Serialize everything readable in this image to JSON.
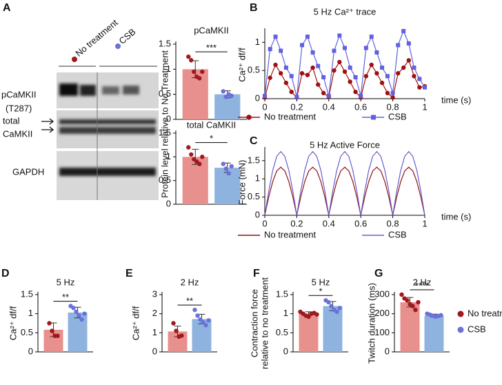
{
  "panel_labels": [
    "A",
    "B",
    "C",
    "D",
    "E",
    "F",
    "G"
  ],
  "blot": {
    "lanes": [
      "No treatment",
      "CSB"
    ],
    "lane_colors": [
      "#a0191c",
      "#6a72d8"
    ],
    "rows": [
      "pCaMKII",
      "(T287)",
      "total",
      "CaMKII",
      "GAPDH"
    ]
  },
  "chart_data": [
    {
      "type": "bar",
      "title": "pCaMKII",
      "ylabel": "Protein level relative to No Treatment",
      "values": [
        1.0,
        0.5
      ],
      "errors": [
        0.17,
        0.07
      ],
      "points": [
        [
          1.25,
          1.18,
          0.95,
          0.85,
          0.82,
          0.95
        ],
        [
          0.56,
          0.45,
          0.5,
          0.47
        ]
      ],
      "colors": [
        "#e8908e",
        "#8fb3df"
      ],
      "point_colors": [
        "#a0191c",
        "#6a72d8"
      ],
      "ylim": [
        0,
        1.5
      ],
      "yticks": [
        0,
        0.5,
        1,
        1.5
      ],
      "significance": "***"
    },
    {
      "type": "bar",
      "title": "total CaMKII",
      "values": [
        1.0,
        0.77
      ],
      "errors": [
        0.16,
        0.1
      ],
      "points": [
        [
          1.2,
          1.05,
          0.95,
          0.9,
          0.85,
          1.0
        ],
        [
          0.85,
          0.75,
          0.65,
          0.8
        ]
      ],
      "colors": [
        "#e8908e",
        "#8fb3df"
      ],
      "point_colors": [
        "#a0191c",
        "#6a72d8"
      ],
      "ylim": [
        0,
        1.5
      ],
      "yticks": [
        0,
        0.5,
        1,
        1.5
      ],
      "significance": "*"
    },
    {
      "type": "line",
      "title": "5 Hz Ca²⁺ trace",
      "ylabel": "Ca²⁺ df/f",
      "xlabel": "time (s)",
      "x": [
        0,
        0.033,
        0.067,
        0.1,
        0.133,
        0.167,
        0.2,
        0.233,
        0.267,
        0.3,
        0.333,
        0.367,
        0.4,
        0.433,
        0.467,
        0.5,
        0.533,
        0.567,
        0.6,
        0.633,
        0.667,
        0.7,
        0.733,
        0.767,
        0.8,
        0.833,
        0.867,
        0.9,
        0.933,
        0.967,
        1
      ],
      "series": [
        {
          "name": "No treatment",
          "color": "#a01010",
          "marker": "circle",
          "values": [
            0.02,
            0.37,
            0.6,
            0.45,
            0.28,
            0.12,
            0.02,
            0.45,
            0.42,
            0.55,
            0.25,
            0.1,
            0.03,
            0.5,
            0.65,
            0.48,
            0.3,
            0.12,
            0.02,
            0.4,
            0.6,
            0.45,
            0.28,
            0.1,
            0.02,
            0.45,
            0.55,
            0.68,
            0.4,
            0.2,
            0.22
          ]
        },
        {
          "name": "CSB",
          "color": "#6060e0",
          "marker": "square",
          "values": [
            0.05,
            0.88,
            1.1,
            0.85,
            0.55,
            0.4,
            0.03,
            0.95,
            1.1,
            0.82,
            0.58,
            0.38,
            0.05,
            0.85,
            1.12,
            0.9,
            0.55,
            0.38,
            0.05,
            0.9,
            1.1,
            0.82,
            0.55,
            0.4,
            0.1,
            0.95,
            1.2,
            0.98,
            0.55,
            0.35,
            0.2
          ]
        }
      ],
      "xlim": [
        0,
        1
      ],
      "xticks": [
        0,
        0.2,
        0.4,
        0.6,
        0.8,
        1
      ],
      "ylim": [
        0,
        1.2
      ],
      "yticks": [
        0,
        0.5,
        1
      ]
    },
    {
      "type": "line",
      "title": "5 Hz Active Force",
      "ylabel": "Force (mN)",
      "xlabel": "time (s)",
      "x": [
        0,
        0.025,
        0.05,
        0.075,
        0.1,
        0.125,
        0.15,
        0.175,
        0.2,
        0.225,
        0.25,
        0.275,
        0.3,
        0.325,
        0.35,
        0.375,
        0.4,
        0.425,
        0.45,
        0.475,
        0.5,
        0.525,
        0.55,
        0.575,
        0.6,
        0.625,
        0.65,
        0.675,
        0.7,
        0.725,
        0.75,
        0.775,
        0.8,
        0.825,
        0.85,
        0.875,
        0.9,
        0.925,
        0.95,
        0.975,
        1
      ],
      "series": [
        {
          "name": "No treatment",
          "color": "#8b1010",
          "values": [
            0,
            0.51,
            0.93,
            1.22,
            1.32,
            1.22,
            0.93,
            0.51,
            0,
            0.51,
            0.93,
            1.22,
            1.32,
            1.22,
            0.93,
            0.51,
            0,
            0.51,
            0.93,
            1.22,
            1.32,
            1.22,
            0.93,
            0.51,
            0,
            0.51,
            0.93,
            1.22,
            1.32,
            1.22,
            0.93,
            0.51,
            0,
            0.51,
            0.93,
            1.22,
            1.32,
            1.22,
            0.93,
            0.51,
            0
          ]
        },
        {
          "name": "CSB",
          "color": "#6a5acd",
          "values": [
            0,
            0.67,
            1.24,
            1.62,
            1.75,
            1.62,
            1.24,
            0.67,
            0,
            0.67,
            1.24,
            1.62,
            1.75,
            1.62,
            1.24,
            0.67,
            0,
            0.67,
            1.24,
            1.62,
            1.75,
            1.62,
            1.24,
            0.67,
            0,
            0.67,
            1.24,
            1.62,
            1.75,
            1.62,
            1.24,
            0.67,
            0,
            0.67,
            1.24,
            1.62,
            1.75,
            1.62,
            1.24,
            0.67,
            0
          ]
        }
      ],
      "xlim": [
        0,
        1
      ],
      "xticks": [
        0,
        0.2,
        0.4,
        0.6,
        0.8,
        1
      ],
      "ylim": [
        0,
        1.8
      ],
      "yticks": [
        0,
        0.5,
        1,
        1.5
      ]
    },
    {
      "type": "bar",
      "title": "5 Hz",
      "ylabel": "Ca²⁺ df/f",
      "values": [
        0.58,
        1.03
      ],
      "errors": [
        0.18,
        0.14
      ],
      "points": [
        [
          0.75,
          0.55,
          0.42,
          0.42
        ],
        [
          1.2,
          1.15,
          1.05,
          0.95,
          0.85,
          1.0
        ]
      ],
      "colors": [
        "#e8908e",
        "#8fb3df"
      ],
      "point_colors": [
        "#a0191c",
        "#6a72d8"
      ],
      "ylim": [
        0,
        1.5
      ],
      "yticks": [
        0,
        0.5,
        1,
        1.5
      ],
      "significance": "**"
    },
    {
      "type": "bar",
      "title": "2 Hz",
      "ylabel": "Ca²⁺ df/f",
      "values": [
        1.07,
        1.72
      ],
      "errors": [
        0.28,
        0.25
      ],
      "points": [
        [
          1.5,
          1.1,
          0.8,
          0.85
        ],
        [
          2.2,
          1.9,
          1.7,
          1.55,
          1.4,
          1.65
        ]
      ],
      "colors": [
        "#e8908e",
        "#8fb3df"
      ],
      "point_colors": [
        "#a0191c",
        "#6a72d8"
      ],
      "ylim": [
        0,
        3
      ],
      "yticks": [
        0,
        1,
        2,
        3
      ],
      "significance": "**"
    },
    {
      "type": "bar",
      "title": "5 Hz",
      "ylabel": [
        "Contraction force",
        "relative to no treatment"
      ],
      "values": [
        1.0,
        1.2
      ],
      "errors": [
        0.05,
        0.12
      ],
      "points": [
        [
          1.05,
          1.0,
          0.95,
          0.92,
          1.0,
          1.02,
          0.98
        ],
        [
          1.35,
          1.3,
          1.2,
          1.1,
          1.05,
          1.15
        ]
      ],
      "colors": [
        "#e8908e",
        "#8fb3df"
      ],
      "point_colors": [
        "#a0191c",
        "#6a72d8"
      ],
      "ylim": [
        0,
        1.5
      ],
      "yticks": [
        0,
        0.5,
        1,
        1.5
      ],
      "significance": "*"
    },
    {
      "type": "bar",
      "title": "2 Hz",
      "ylabel": "Twitch duration (ms)",
      "values": [
        260,
        190
      ],
      "errors": [
        25,
        8
      ],
      "points": [
        [
          300,
          280,
          270,
          250,
          240,
          220,
          260
        ],
        [
          200,
          195,
          190,
          185,
          188,
          192
        ]
      ],
      "colors": [
        "#e8908e",
        "#8fb3df"
      ],
      "point_colors": [
        "#a0191c",
        "#6a72d8"
      ],
      "ylim": [
        0,
        300
      ],
      "yticks": [
        0,
        100,
        200,
        300
      ],
      "significance": "****",
      "legend": [
        "No treatment",
        "CSB"
      ]
    }
  ]
}
